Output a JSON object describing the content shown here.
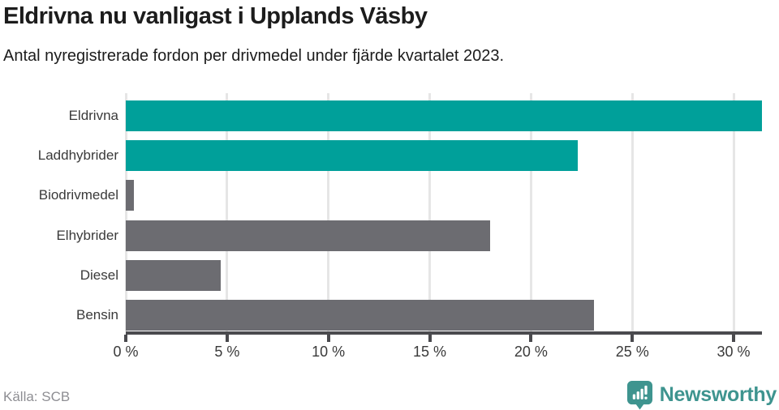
{
  "header": {
    "title": "Eldrivna nu vanligast i Upplands Väsby",
    "subtitle": "Antal nyregistrerade fordon per drivmedel under fjärde kvartalet 2023."
  },
  "footer": {
    "source": "Källa: SCB",
    "brand": "Newsworthy"
  },
  "colors": {
    "teal": "#00a09a",
    "gray": "#6c6c71",
    "gridline": "#e6e6e6",
    "axis": "#4a4a4e",
    "text": "#3a3a3a",
    "logo_teal": "#3e948f"
  },
  "chart_data": {
    "type": "bar",
    "orientation": "horizontal",
    "title": "Eldrivna nu vanligast i Upplands Väsby",
    "subtitle": "Antal nyregistrerade fordon per drivmedel under fjärde kvartalet 2023.",
    "categories": [
      "Eldrivna",
      "Laddhybrider",
      "Biodrivmedel",
      "Elhybrider",
      "Diesel",
      "Bensin"
    ],
    "values": [
      31.4,
      22.3,
      0.4,
      18.0,
      4.7,
      23.1
    ],
    "unit": "%",
    "bar_colors": [
      "#00a09a",
      "#00a09a",
      "#6c6c71",
      "#6c6c71",
      "#6c6c71",
      "#6c6c71"
    ],
    "xlabel": "",
    "ylabel": "",
    "xlim": [
      0,
      31.4
    ],
    "xticks": [
      0,
      5,
      10,
      15,
      20,
      25,
      30
    ],
    "xtick_labels": [
      "0 %",
      "5 %",
      "10 %",
      "15 %",
      "20 %",
      "25 %",
      "30 %"
    ],
    "grid": "vertical",
    "legend": "none"
  }
}
